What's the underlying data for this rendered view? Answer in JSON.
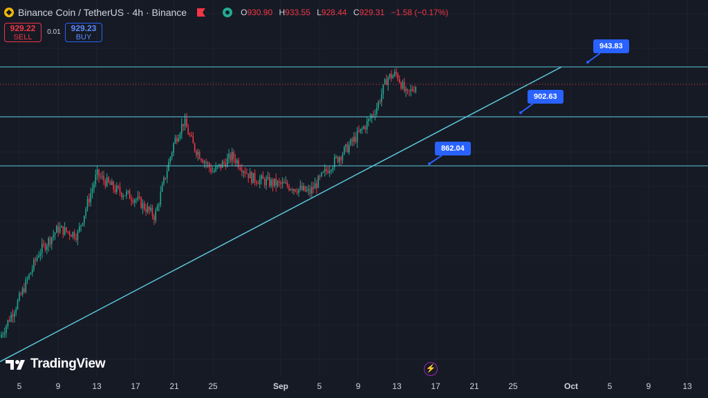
{
  "legend": {
    "symbol": "Binance Coin / TetherUS · 4h · Binance",
    "open_label": "O",
    "open": "930.90",
    "high_label": "H",
    "high": "933.55",
    "low_label": "L",
    "low": "928.44",
    "close_label": "C",
    "close": "929.31",
    "change": "−1.58 (−0.17%)"
  },
  "trade": {
    "sell_price": "929.22",
    "sell_label": "SELL",
    "spread": "0.01",
    "buy_price": "929.23",
    "buy_label": "BUY"
  },
  "logo": {
    "text": "TradingView"
  },
  "icons": {
    "coin": "bnb-coin-icon",
    "flag": "flag-icon",
    "eye": "visibility-icon",
    "bolt": "lightning-icon"
  },
  "colors": {
    "up": "#22ab94",
    "down": "#f23645",
    "line": "#5bc8dc",
    "tag": "#2962ff",
    "background": "#161a25"
  },
  "price_tags": [
    "943.83",
    "902.63",
    "862.04"
  ],
  "x_axis": [
    "5",
    "9",
    "13",
    "17",
    "21",
    "25",
    "Sep",
    "5",
    "9",
    "13",
    "17",
    "21",
    "25",
    "Oct",
    "5",
    "9",
    "13"
  ],
  "chart_data": {
    "type": "candlestick",
    "timeframe": "4h",
    "x_range": [
      "Aug 4",
      "Oct 14"
    ],
    "horizontal_levels": [
      943.83,
      902.63,
      862.04
    ],
    "last_price": 929.31,
    "trend_line": {
      "start": [
        "Aug 4",
        700
      ],
      "end": [
        "Oct 1",
        943.83
      ]
    },
    "trend_path": [
      [
        "Aug 4",
        720
      ],
      [
        "Aug 6",
        752
      ],
      [
        "Aug 8",
        790
      ],
      [
        "Aug 10",
        810
      ],
      [
        "Aug 12",
        805
      ],
      [
        "Aug 14",
        855
      ],
      [
        "Aug 16",
        842
      ],
      [
        "Aug 18",
        835
      ],
      [
        "Aug 20",
        820
      ],
      [
        "Aug 22",
        882
      ],
      [
        "Aug 23",
        899
      ],
      [
        "Aug 24",
        878
      ],
      [
        "Aug 26",
        857
      ],
      [
        "Aug 28",
        870
      ],
      [
        "Aug 30",
        852
      ],
      [
        "Sep 1",
        848
      ],
      [
        "Sep 3",
        845
      ],
      [
        "Sep 5",
        840
      ],
      [
        "Sep 7",
        861
      ],
      [
        "Sep 9",
        878
      ],
      [
        "Sep 11",
        898
      ],
      [
        "Sep 12",
        912
      ],
      [
        "Sep 13",
        935
      ],
      [
        "Sep 14",
        938
      ],
      [
        "Sep 15",
        920
      ],
      [
        "Sep 16",
        929
      ]
    ]
  }
}
